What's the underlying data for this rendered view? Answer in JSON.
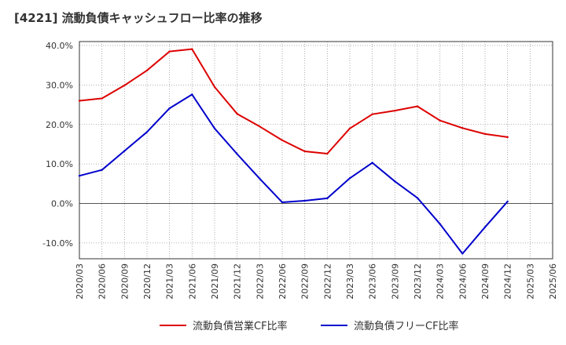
{
  "chart_data": {
    "type": "line",
    "title": "[4221]  流動負債キャッシュフロー比率の推移",
    "xlabel": "",
    "ylabel": "",
    "ylim": [
      -14,
      41
    ],
    "yticks": [
      {
        "value": 40,
        "label": "40.0%"
      },
      {
        "value": 30,
        "label": "30.0%"
      },
      {
        "value": 20,
        "label": "20.0%"
      },
      {
        "value": 10,
        "label": "10.0%"
      },
      {
        "value": 0,
        "label": "0.0%"
      },
      {
        "value": -10,
        "label": "-10.0%"
      }
    ],
    "categories": [
      "2020/03",
      "2020/06",
      "2020/09",
      "2020/12",
      "2021/03",
      "2021/06",
      "2021/09",
      "2021/12",
      "2022/03",
      "2022/06",
      "2022/09",
      "2022/12",
      "2023/03",
      "2023/06",
      "2023/09",
      "2023/12",
      "2024/03",
      "2024/06",
      "2024/09",
      "2024/12",
      "2025/03",
      "2025/06"
    ],
    "series": [
      {
        "name": "流動負債営業CF比率",
        "color": "#dd0000",
        "values": [
          26.0,
          26.6,
          29.9,
          33.7,
          38.5,
          39.1,
          29.5,
          22.7,
          19.5,
          16.0,
          13.2,
          12.6,
          19.0,
          22.6,
          23.5,
          24.6,
          21.0,
          19.1,
          17.6,
          16.8,
          null,
          null
        ]
      },
      {
        "name": "流動負債フリーCF比率",
        "color": "#0000cc",
        "values": [
          7.0,
          8.5,
          13.3,
          18.1,
          24.1,
          27.6,
          19.0,
          12.5,
          6.3,
          0.3,
          0.7,
          1.3,
          6.4,
          10.3,
          5.6,
          1.4,
          -5.2,
          -12.7,
          -6.0,
          0.5,
          null,
          null
        ]
      }
    ],
    "legend_position": "bottom-center",
    "grid": true
  }
}
